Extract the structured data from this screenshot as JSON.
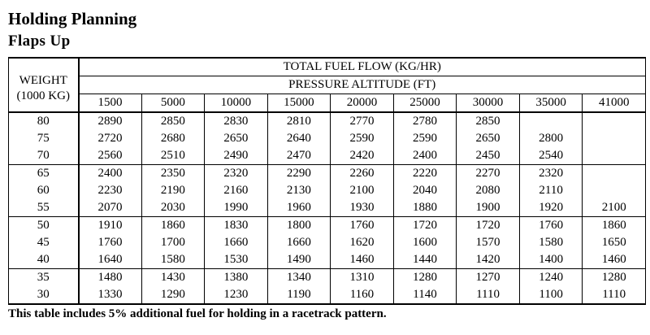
{
  "title": "Holding Planning",
  "subtitle": "Flaps Up",
  "table": {
    "weight_header_line1": "WEIGHT",
    "weight_header_line2": "(1000 KG)",
    "header_main": "TOTAL FUEL FLOW (KG/HR)",
    "header_sub": "PRESSURE ALTITUDE (FT)",
    "altitudes": [
      "1500",
      "5000",
      "10000",
      "15000",
      "20000",
      "25000",
      "30000",
      "35000",
      "41000"
    ],
    "rows": [
      {
        "weight": "80",
        "values": [
          "2890",
          "2850",
          "2830",
          "2810",
          "2770",
          "2780",
          "2850",
          "",
          ""
        ]
      },
      {
        "weight": "75",
        "values": [
          "2720",
          "2680",
          "2650",
          "2640",
          "2590",
          "2590",
          "2650",
          "2800",
          ""
        ]
      },
      {
        "weight": "70",
        "values": [
          "2560",
          "2510",
          "2490",
          "2470",
          "2420",
          "2400",
          "2450",
          "2540",
          ""
        ]
      },
      {
        "weight": "65",
        "values": [
          "2400",
          "2350",
          "2320",
          "2290",
          "2260",
          "2220",
          "2270",
          "2320",
          ""
        ]
      },
      {
        "weight": "60",
        "values": [
          "2230",
          "2190",
          "2160",
          "2130",
          "2100",
          "2040",
          "2080",
          "2110",
          ""
        ]
      },
      {
        "weight": "55",
        "values": [
          "2070",
          "2030",
          "1990",
          "1960",
          "1930",
          "1880",
          "1900",
          "1920",
          "2100"
        ]
      },
      {
        "weight": "50",
        "values": [
          "1910",
          "1860",
          "1830",
          "1800",
          "1760",
          "1720",
          "1720",
          "1760",
          "1860"
        ]
      },
      {
        "weight": "45",
        "values": [
          "1760",
          "1700",
          "1660",
          "1660",
          "1620",
          "1600",
          "1570",
          "1580",
          "1650"
        ]
      },
      {
        "weight": "40",
        "values": [
          "1640",
          "1580",
          "1530",
          "1490",
          "1460",
          "1440",
          "1420",
          "1400",
          "1460"
        ]
      },
      {
        "weight": "35",
        "values": [
          "1480",
          "1430",
          "1380",
          "1340",
          "1310",
          "1280",
          "1270",
          "1240",
          "1280"
        ]
      },
      {
        "weight": "30",
        "values": [
          "1330",
          "1290",
          "1230",
          "1190",
          "1160",
          "1140",
          "1110",
          "1100",
          "1110"
        ]
      }
    ]
  },
  "footnote": "This table includes 5% additional fuel for holding in a racetrack pattern."
}
